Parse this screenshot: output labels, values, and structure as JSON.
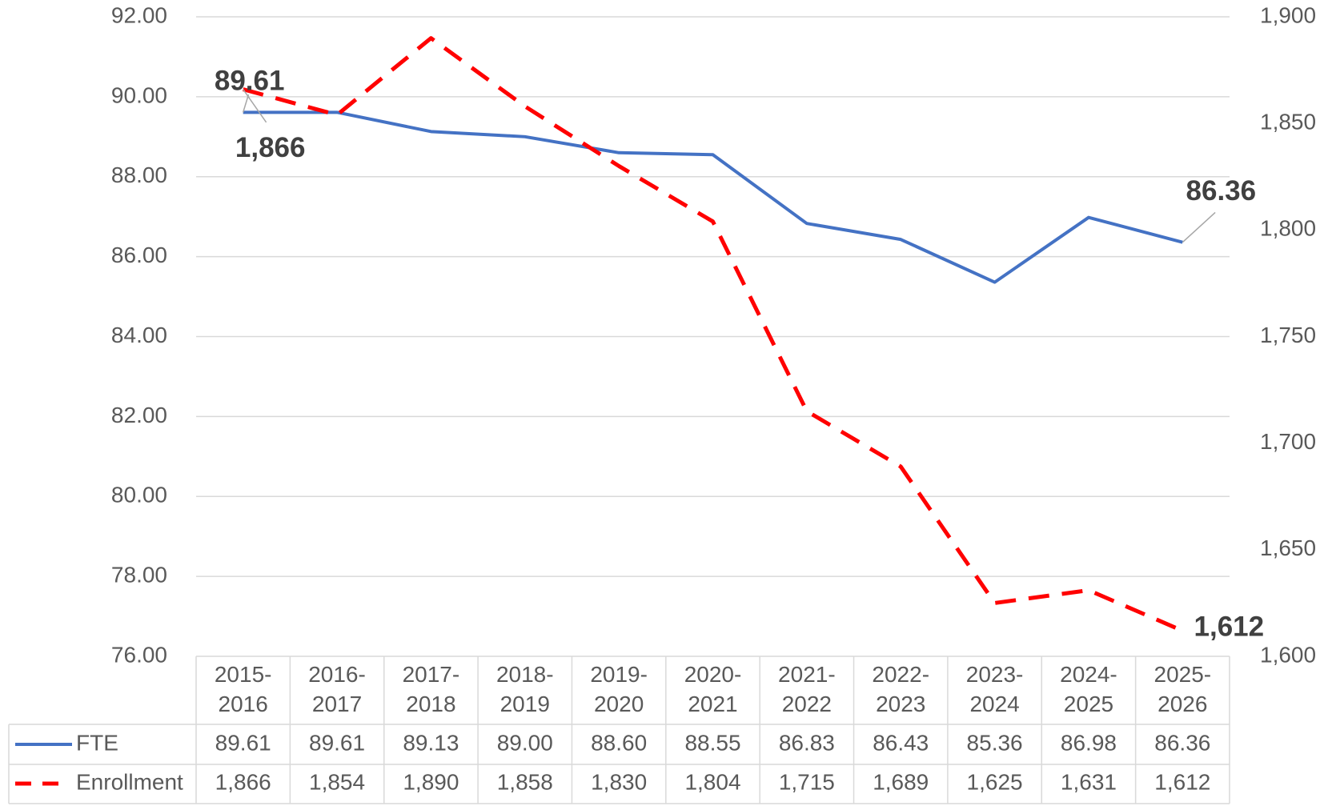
{
  "chart_data": {
    "type": "line",
    "categories": [
      "2015-2016",
      "2016-2017",
      "2017-2018",
      "2018-2019",
      "2019-2020",
      "2020-2021",
      "2021-2022",
      "2022-2023",
      "2023-2024",
      "2024-2025",
      "2025-2026"
    ],
    "series": [
      {
        "name": "FTE",
        "color": "#4472c4",
        "dashed": false,
        "values": [
          89.61,
          89.61,
          89.13,
          89.0,
          88.6,
          88.55,
          86.83,
          86.43,
          85.36,
          86.98,
          86.36
        ],
        "value_labels": [
          "89.61",
          "89.61",
          "89.13",
          "89.00",
          "88.60",
          "88.55",
          "86.83",
          "86.43",
          "85.36",
          "86.98",
          "86.36"
        ]
      },
      {
        "name": "Enrollment",
        "color": "#ff0000",
        "dashed": true,
        "axis": "y2",
        "values": [
          1866,
          1854,
          1890,
          1858,
          1830,
          1804,
          1715,
          1689,
          1625,
          1631,
          1612
        ],
        "value_labels": [
          "1,866",
          "1,854",
          "1,890",
          "1,858",
          "1,830",
          "1,804",
          "1,715",
          "1,689",
          "1,625",
          "1,631",
          "1,612"
        ]
      }
    ],
    "ylim": [
      76,
      92
    ],
    "yticks": [
      {
        "value": 76,
        "label": "76.00"
      },
      {
        "value": 78,
        "label": "78.00"
      },
      {
        "value": 80,
        "label": "80.00"
      },
      {
        "value": 82,
        "label": "82.00"
      },
      {
        "value": 84,
        "label": "84.00"
      },
      {
        "value": 86,
        "label": "86.00"
      },
      {
        "value": 88,
        "label": "88.00"
      },
      {
        "value": 90,
        "label": "90.00"
      },
      {
        "value": 92,
        "label": "92.00"
      }
    ],
    "y2lim": [
      1600,
      1900
    ],
    "y2ticks": [
      {
        "value": 1600,
        "label": "1,600"
      },
      {
        "value": 1650,
        "label": "1,650"
      },
      {
        "value": 1700,
        "label": "1,700"
      },
      {
        "value": 1750,
        "label": "1,750"
      },
      {
        "value": 1800,
        "label": "1,800"
      },
      {
        "value": 1850,
        "label": "1,850"
      },
      {
        "value": 1900,
        "label": "1,900"
      }
    ],
    "grid": true
  }
}
